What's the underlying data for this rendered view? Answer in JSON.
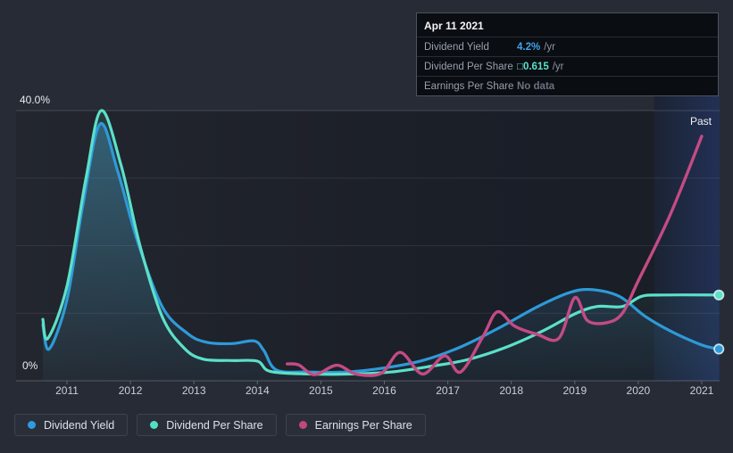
{
  "tooltip": {
    "date": "Apr 11 2021",
    "rows": [
      {
        "label": "Dividend Yield",
        "value": "4.2%",
        "suffix": "/yr",
        "value_color": "#3fa3ea"
      },
      {
        "label": "Dividend Per Share",
        "value": "□0.615",
        "suffix": "/yr",
        "value_color": "#5ce0c9"
      },
      {
        "label": "Earnings Per Share",
        "value": "No data",
        "suffix": "",
        "value_color": "#6b7280"
      }
    ]
  },
  "chart_data": {
    "type": "line",
    "title": "",
    "x_axis": {
      "ticks": [
        2011,
        2012,
        2013,
        2014,
        2015,
        2016,
        2017,
        2018,
        2019,
        2020,
        2021
      ],
      "range": [
        2010.55,
        2021.3
      ]
    },
    "y_axis": {
      "tick_labels": [
        "40.0%",
        "0%"
      ],
      "min": 0,
      "max": 40,
      "unit": "%",
      "gridline_values": [
        10,
        20,
        30,
        40
      ]
    },
    "annotations": {
      "past_label": "Past",
      "past_band_start": 2020.25
    },
    "colors": {
      "plot_bg_left": "#23262e",
      "plot_bg_right": "#191d26",
      "past_band_left": "#1b2333",
      "past_band_right": "#223055"
    },
    "series": [
      {
        "name": "Dividend Yield",
        "color": "#2e9ad8",
        "end_dot": true,
        "area_fill": "rgba(70,150,205,0.38)",
        "points": [
          [
            2010.62,
            8.3
          ],
          [
            2010.72,
            4.7
          ],
          [
            2011.0,
            12
          ],
          [
            2011.25,
            26
          ],
          [
            2011.52,
            38
          ],
          [
            2011.8,
            31
          ],
          [
            2012.1,
            21
          ],
          [
            2012.5,
            11
          ],
          [
            2012.9,
            7.0
          ],
          [
            2013.2,
            5.7
          ],
          [
            2013.6,
            5.5
          ],
          [
            2013.95,
            5.9
          ],
          [
            2014.1,
            4.5
          ],
          [
            2014.3,
            1.6
          ],
          [
            2014.8,
            1.3
          ],
          [
            2015.4,
            1.3
          ],
          [
            2016.0,
            1.9
          ],
          [
            2016.6,
            3.0
          ],
          [
            2017.2,
            5.0
          ],
          [
            2017.8,
            7.8
          ],
          [
            2018.4,
            10.9
          ],
          [
            2018.9,
            13.0
          ],
          [
            2019.25,
            13.5
          ],
          [
            2019.7,
            12.5
          ],
          [
            2020.1,
            9.6
          ],
          [
            2020.5,
            7.4
          ],
          [
            2021.0,
            5.3
          ],
          [
            2021.27,
            4.7
          ]
        ]
      },
      {
        "name": "Dividend Per Share",
        "color": "#5ce0c9",
        "end_dot": true,
        "area_fill": "rgba(90,220,200,0.10)",
        "points": [
          [
            2010.62,
            9.1
          ],
          [
            2010.7,
            6.3
          ],
          [
            2011.0,
            14
          ],
          [
            2011.3,
            30
          ],
          [
            2011.54,
            40
          ],
          [
            2011.85,
            32
          ],
          [
            2012.15,
            20
          ],
          [
            2012.5,
            9.5
          ],
          [
            2012.85,
            4.8
          ],
          [
            2013.15,
            3.2
          ],
          [
            2013.6,
            3.0
          ],
          [
            2014.0,
            2.9
          ],
          [
            2014.2,
            1.4
          ],
          [
            2014.8,
            1.0
          ],
          [
            2015.5,
            1.0
          ],
          [
            2016.1,
            1.3
          ],
          [
            2016.7,
            2.1
          ],
          [
            2017.3,
            3.1
          ],
          [
            2017.9,
            4.9
          ],
          [
            2018.5,
            7.4
          ],
          [
            2019.0,
            9.9
          ],
          [
            2019.35,
            11.0
          ],
          [
            2019.75,
            11.0
          ],
          [
            2020.05,
            12.5
          ],
          [
            2020.4,
            12.7
          ],
          [
            2021.27,
            12.7
          ]
        ]
      },
      {
        "name": "Earnings Per Share",
        "color": "#c34b84",
        "end_dot": false,
        "area_fill": null,
        "points": [
          [
            2014.47,
            2.5
          ],
          [
            2014.65,
            2.35
          ],
          [
            2014.9,
            0.9
          ],
          [
            2015.25,
            2.3
          ],
          [
            2015.55,
            1.0
          ],
          [
            2015.95,
            1.1
          ],
          [
            2016.25,
            4.2
          ],
          [
            2016.6,
            1.0
          ],
          [
            2016.95,
            3.7
          ],
          [
            2017.2,
            1.3
          ],
          [
            2017.55,
            6.5
          ],
          [
            2017.78,
            10.2
          ],
          [
            2018.05,
            8.1
          ],
          [
            2018.4,
            6.9
          ],
          [
            2018.75,
            6.3
          ],
          [
            2019.0,
            12.3
          ],
          [
            2019.2,
            8.9
          ],
          [
            2019.5,
            8.6
          ],
          [
            2019.75,
            10.0
          ],
          [
            2020.0,
            14.8
          ],
          [
            2020.5,
            24.5
          ],
          [
            2021.0,
            36.2
          ]
        ]
      }
    ]
  },
  "legend": {
    "items": [
      {
        "label": "Dividend Yield",
        "color": "#2e9be0"
      },
      {
        "label": "Dividend Per Share",
        "color": "#52e0c4"
      },
      {
        "label": "Earnings Per Share",
        "color": "#c2477f"
      }
    ]
  }
}
